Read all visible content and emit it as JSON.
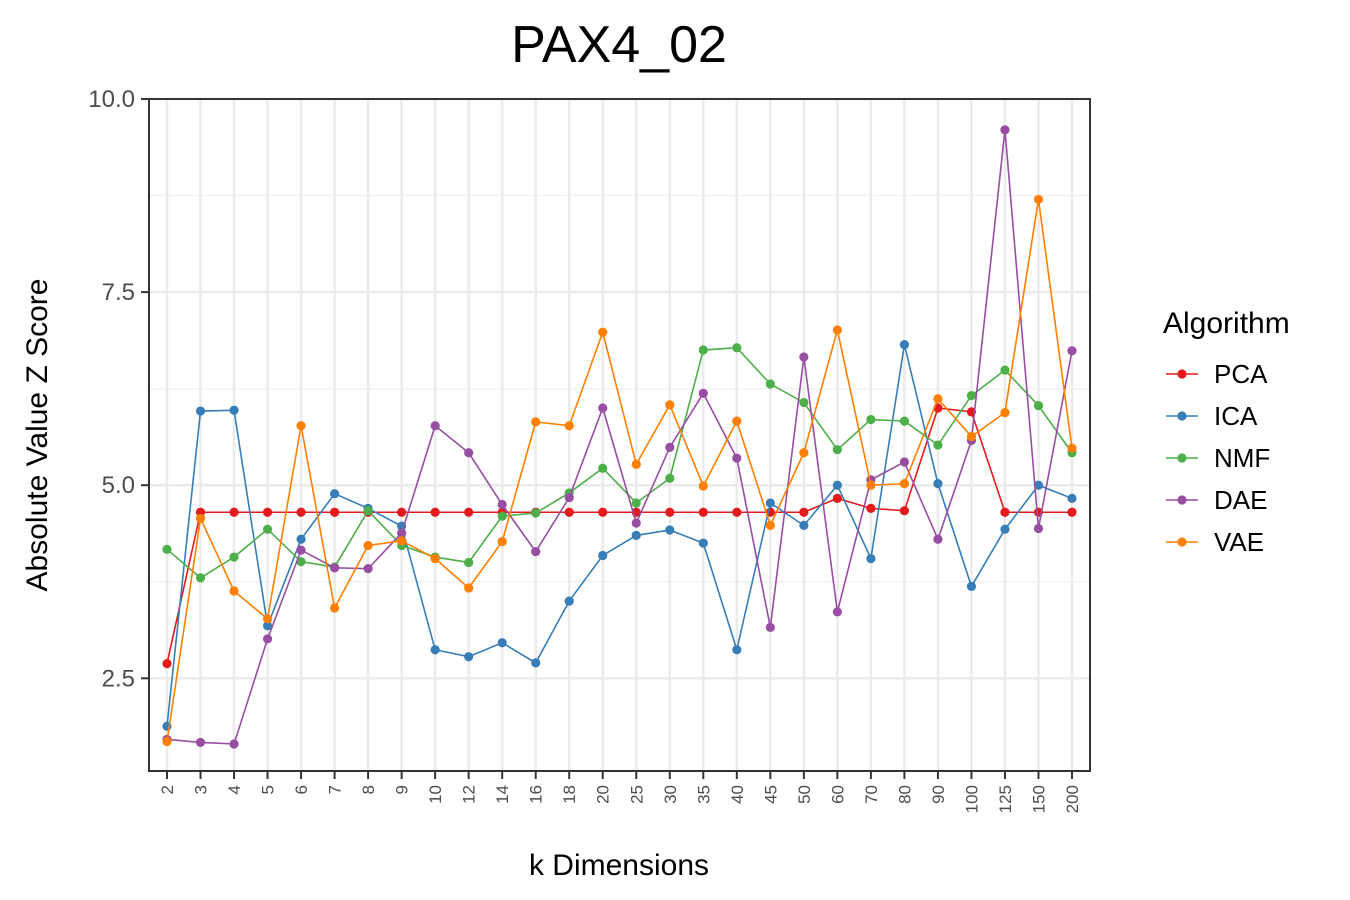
{
  "chart_data": {
    "type": "line",
    "title": "PAX4_02",
    "xlabel": "k Dimensions",
    "ylabel": "Absolute Value Z Score",
    "categories": [
      "2",
      "3",
      "4",
      "5",
      "6",
      "7",
      "8",
      "9",
      "10",
      "12",
      "14",
      "16",
      "18",
      "20",
      "25",
      "30",
      "35",
      "40",
      "45",
      "50",
      "60",
      "70",
      "80",
      "90",
      "100",
      "125",
      "150",
      "200"
    ],
    "ylim": [
      1.3,
      10.0
    ],
    "yticks": [
      "2.5",
      "5.0",
      "7.5",
      "10.0"
    ],
    "grid": true,
    "legend": {
      "title": "Algorithm",
      "position": "right"
    },
    "series": [
      {
        "name": "PCA",
        "color": "#E41A1C",
        "values": [
          2.69,
          4.65,
          4.65,
          4.65,
          4.65,
          4.65,
          4.65,
          4.65,
          4.65,
          4.65,
          4.65,
          4.65,
          4.65,
          4.65,
          4.65,
          4.65,
          4.65,
          4.65,
          4.65,
          4.65,
          4.83,
          4.7,
          4.67,
          6.0,
          5.95,
          4.65,
          4.65,
          4.65
        ]
      },
      {
        "name": "ICA",
        "color": "#377EB8",
        "values": [
          1.88,
          5.96,
          5.97,
          3.18,
          4.3,
          4.89,
          4.7,
          4.47,
          2.87,
          2.78,
          2.96,
          2.7,
          3.5,
          4.09,
          4.35,
          4.42,
          4.25,
          2.87,
          4.77,
          4.48,
          5.0,
          4.05,
          6.82,
          5.02,
          3.69,
          4.43,
          5.0,
          4.83
        ]
      },
      {
        "name": "NMF",
        "color": "#4DAF4A",
        "values": [
          4.17,
          3.8,
          4.07,
          4.43,
          4.01,
          3.94,
          4.67,
          4.22,
          4.07,
          4.0,
          4.6,
          4.64,
          4.9,
          5.22,
          4.77,
          5.09,
          6.75,
          6.78,
          6.31,
          6.07,
          5.46,
          5.85,
          5.83,
          5.52,
          6.16,
          6.49,
          6.03,
          5.42
        ]
      },
      {
        "name": "DAE",
        "color": "#984EA3",
        "values": [
          1.71,
          1.67,
          1.65,
          3.01,
          4.16,
          3.93,
          3.92,
          4.38,
          5.77,
          5.42,
          4.75,
          4.14,
          4.84,
          6.0,
          4.51,
          5.49,
          6.19,
          5.35,
          3.16,
          6.66,
          3.36,
          5.07,
          5.3,
          4.3,
          5.58,
          9.6,
          4.44,
          6.74
        ]
      },
      {
        "name": "VAE",
        "color": "#FF7F00",
        "values": [
          1.68,
          4.57,
          3.63,
          3.27,
          5.77,
          3.41,
          4.22,
          4.28,
          4.05,
          3.67,
          4.27,
          5.82,
          5.77,
          6.98,
          5.27,
          6.04,
          4.99,
          5.83,
          4.48,
          5.42,
          7.01,
          5.0,
          5.02,
          6.12,
          5.63,
          5.94,
          8.7,
          5.48
        ]
      }
    ]
  }
}
